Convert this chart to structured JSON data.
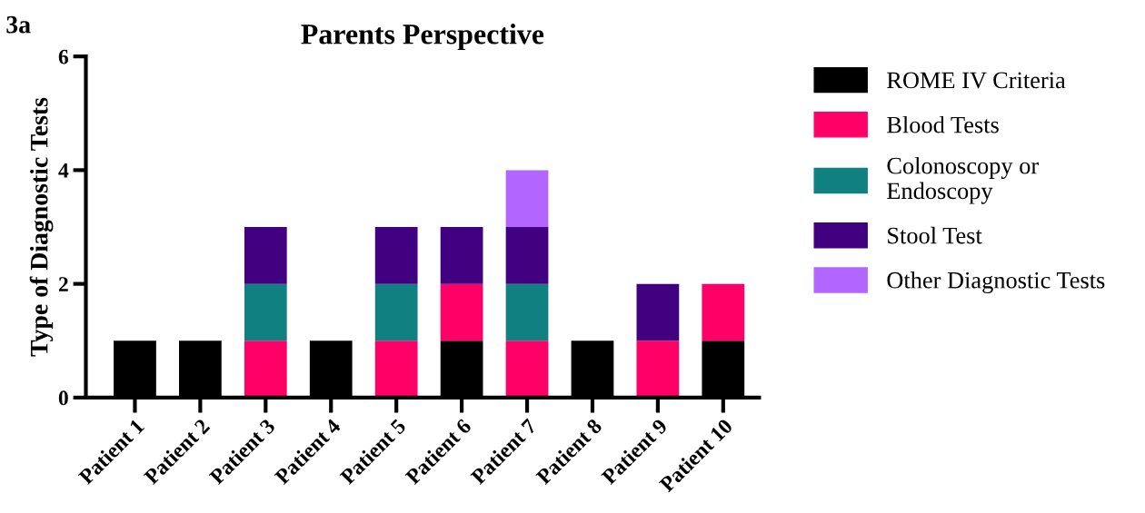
{
  "chart_data": {
    "type": "bar",
    "title": "Parents Perspective",
    "ylabel": "Type of Diagnostic Tests",
    "annotations": [
      "3a"
    ],
    "categories": [
      "Patient 1",
      "Patient 2",
      "Patient 3",
      "Patient 4",
      "Patient 5",
      "Patient 6",
      "Patient 7",
      "Patient 8",
      "Patient 9",
      "Patient 10"
    ],
    "series": [
      {
        "name": "ROME IV Criteria",
        "color": "#000000",
        "values": [
          1,
          1,
          0,
          1,
          0,
          1,
          0,
          1,
          0,
          1
        ]
      },
      {
        "name": "Blood Tests",
        "color": "#ff0066",
        "values": [
          0,
          0,
          1,
          0,
          1,
          1,
          1,
          0,
          1,
          1
        ]
      },
      {
        "name": "Colonoscopy or\nEndoscopy",
        "color": "#118080",
        "values": [
          0,
          0,
          1,
          0,
          1,
          0,
          1,
          0,
          0,
          0
        ]
      },
      {
        "name": "Stool Test",
        "color": "#400080",
        "values": [
          0,
          0,
          1,
          0,
          1,
          1,
          1,
          0,
          1,
          0
        ]
      },
      {
        "name": "Other Diagnostic Tests",
        "color": "#b266ff",
        "values": [
          0,
          0,
          0,
          0,
          0,
          0,
          1,
          0,
          0,
          0
        ]
      }
    ],
    "stacked": true,
    "ylim": [
      0,
      6
    ],
    "yticks": [
      0,
      2,
      4,
      6
    ],
    "grid": false,
    "legend": "right"
  }
}
